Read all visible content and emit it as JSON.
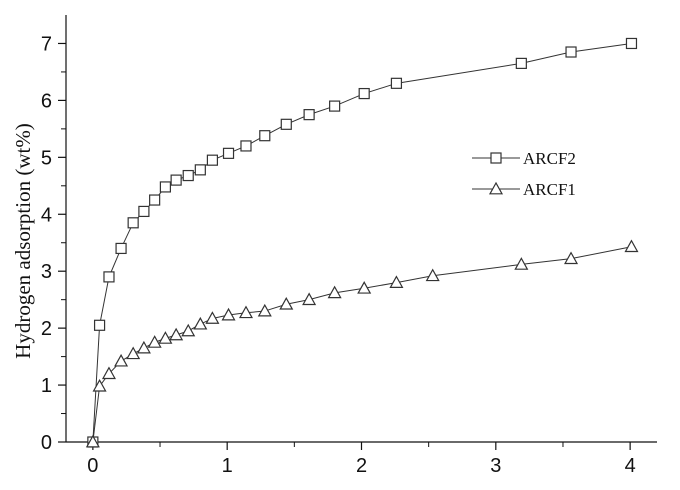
{
  "chart_data": {
    "type": "line",
    "title": "",
    "xlabel": "",
    "ylabel": "Hydrogen adsorption (wt%)",
    "xlim": [
      -0.2,
      4.2
    ],
    "ylim": [
      0,
      7.5
    ],
    "xticks": [
      0,
      1,
      2,
      3,
      4
    ],
    "yticks": [
      0,
      1,
      2,
      3,
      4,
      5,
      6,
      7
    ],
    "grid": false,
    "legend_position": "center-right",
    "series": [
      {
        "name": "ARCF2",
        "marker": "square",
        "color": "#333333",
        "x": [
          0.0,
          0.05,
          0.12,
          0.21,
          0.3,
          0.38,
          0.46,
          0.54,
          0.62,
          0.71,
          0.8,
          0.89,
          1.01,
          1.14,
          1.28,
          1.44,
          1.61,
          1.8,
          2.02,
          2.26,
          3.19,
          3.56,
          4.01
        ],
        "y": [
          0.0,
          2.05,
          2.9,
          3.4,
          3.85,
          4.05,
          4.25,
          4.48,
          4.6,
          4.68,
          4.78,
          4.95,
          5.07,
          5.2,
          5.38,
          5.58,
          5.75,
          5.9,
          6.12,
          6.3,
          6.65,
          6.85,
          7.0
        ]
      },
      {
        "name": "ARCF1",
        "marker": "triangle",
        "color": "#333333",
        "x": [
          0.0,
          0.05,
          0.12,
          0.21,
          0.3,
          0.38,
          0.46,
          0.54,
          0.62,
          0.71,
          0.8,
          0.89,
          1.01,
          1.14,
          1.28,
          1.44,
          1.61,
          1.8,
          2.02,
          2.26,
          2.53,
          3.19,
          3.56,
          4.01
        ],
        "y": [
          0.0,
          0.98,
          1.2,
          1.42,
          1.55,
          1.65,
          1.75,
          1.82,
          1.88,
          1.95,
          2.07,
          2.17,
          2.23,
          2.27,
          2.3,
          2.42,
          2.5,
          2.62,
          2.7,
          2.8,
          2.92,
          3.12,
          3.22,
          3.43
        ]
      }
    ]
  }
}
